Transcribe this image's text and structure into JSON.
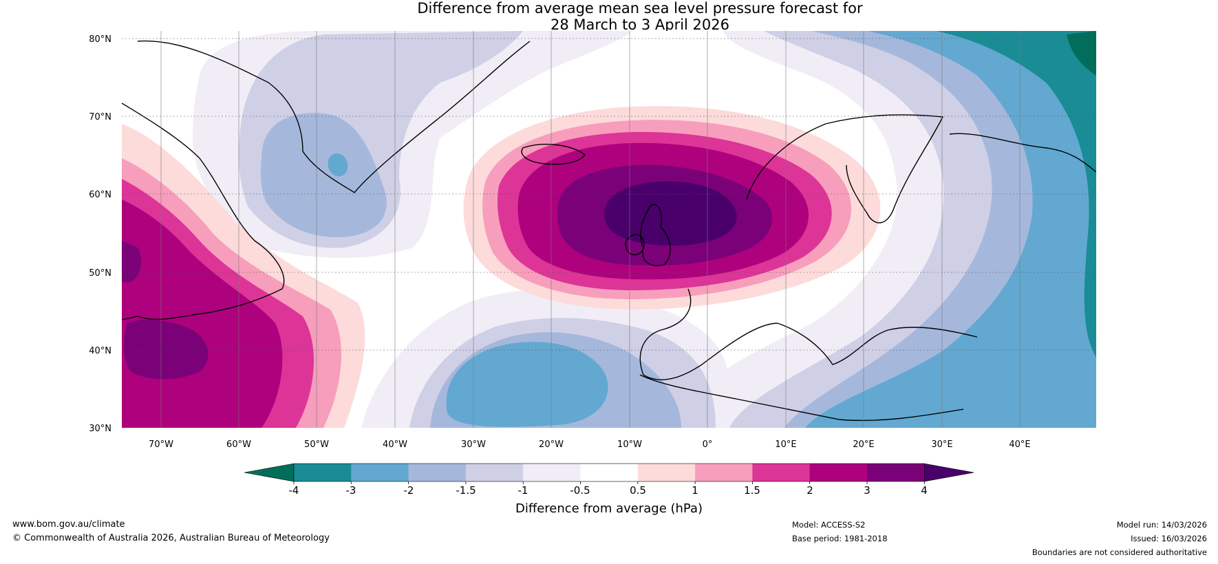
{
  "title": {
    "line1": "Difference from average mean sea level pressure forecast for",
    "line2": "28 March to 3 April 2026"
  },
  "lat_labels": [
    "80°N",
    "70°N",
    "60°N",
    "50°N",
    "40°N",
    "30°N"
  ],
  "lon_labels": [
    "70°W",
    "60°W",
    "50°W",
    "40°W",
    "30°W",
    "20°W",
    "10°W",
    "0°",
    "10°E",
    "20°E",
    "30°E",
    "40°E"
  ],
  "colorbar": {
    "title": "Difference from average (hPa)",
    "tick_labels": [
      "-4",
      "-3",
      "-2",
      "-1.5",
      "-1",
      "-0.5",
      "0.5",
      "1",
      "1.5",
      "2",
      "3",
      "4"
    ],
    "colors": [
      "#006e5a",
      "#1a8c96",
      "#63a8d0",
      "#a5b8dc",
      "#cfd0e6",
      "#f1edf6",
      "#ffffff",
      "#fddbdb",
      "#f79ebc",
      "#dd3497",
      "#ae017e",
      "#7a0177",
      "#49006a"
    ]
  },
  "footer": {
    "website": "www.bom.gov.au/climate",
    "copyright": "© Commonwealth of Australia 2026, Australian Bureau of Meteorology",
    "model": "Model: ACCESS-S2",
    "base_period": "Base period: 1981-2018",
    "model_run": "Model run: 14/03/2026",
    "issued": "Issued: 16/03/2026",
    "disclaimer": "Boundaries are not considered authoritative"
  }
}
